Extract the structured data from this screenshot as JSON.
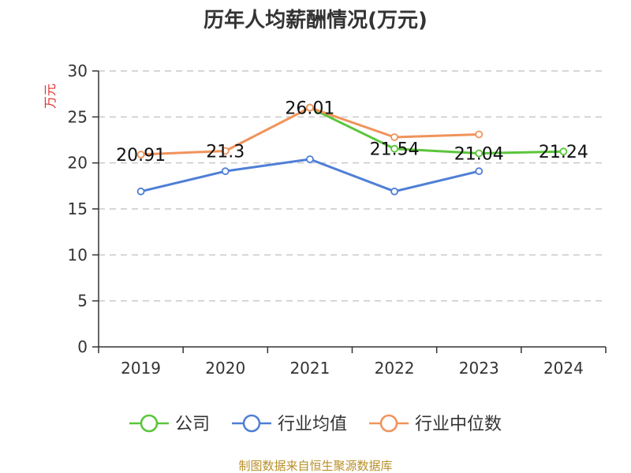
{
  "chart_data": {
    "type": "line",
    "title": "历年人均薪酬情况(万元)",
    "ylabel": "万元",
    "xlabel": "",
    "categories": [
      "2019",
      "2020",
      "2021",
      "2022",
      "2023",
      "2024"
    ],
    "ylim": [
      0,
      30
    ],
    "yticks": [
      0,
      5,
      10,
      15,
      20,
      25,
      30
    ],
    "grid": true,
    "legend_position": "bottom",
    "series": [
      {
        "name": "公司",
        "color": "#5ac53a",
        "values": [
          null,
          null,
          26.01,
          21.54,
          21.04,
          21.24
        ],
        "labels": [
          null,
          null,
          null,
          "21.54",
          "21.04",
          "21.24"
        ]
      },
      {
        "name": "行业均值",
        "color": "#4f7fd6",
        "values": [
          16.9,
          19.1,
          20.4,
          16.9,
          19.1,
          null
        ],
        "labels": [
          null,
          null,
          null,
          null,
          null,
          null
        ]
      },
      {
        "name": "行业中位数",
        "color": "#f0935a",
        "values": [
          20.91,
          21.3,
          26.01,
          22.8,
          23.1,
          null
        ],
        "labels": [
          "20.91",
          "21.3",
          "26.01",
          null,
          null,
          null
        ]
      }
    ]
  },
  "source_text": "制图数据来自恒生聚源数据库"
}
